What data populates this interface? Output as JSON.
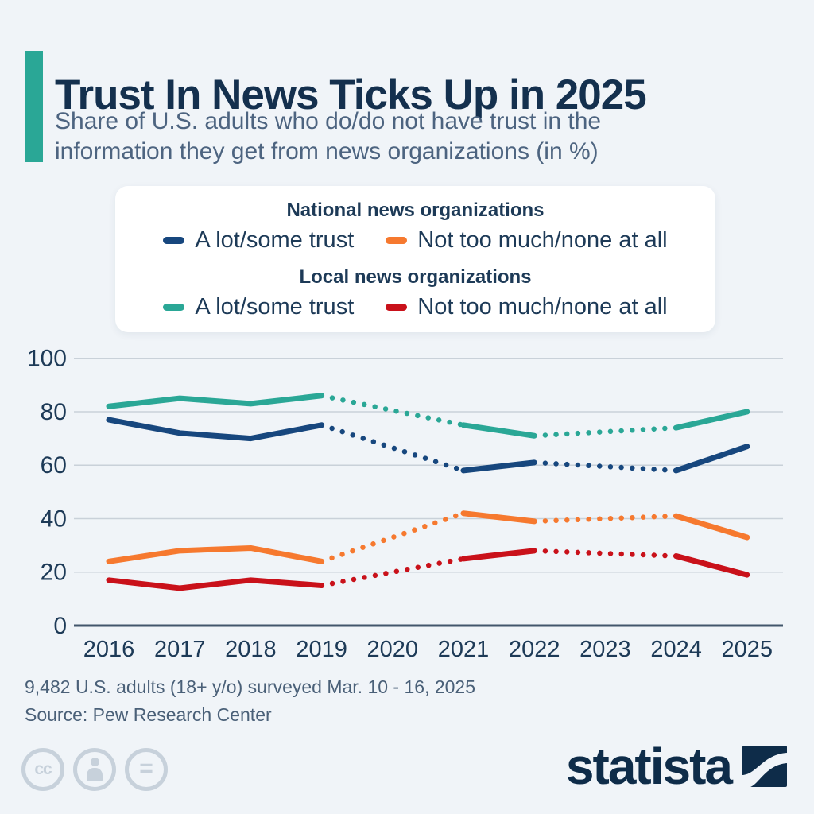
{
  "header": {
    "title": "Trust In News Ticks Up in 2025",
    "subtitle": "Share of U.S. adults who do/do not have trust in the\ninformation they get from news organizations (in %)",
    "accent_color": "#2aa796"
  },
  "legend": {
    "groups": [
      {
        "heading": "National news organizations",
        "items": [
          {
            "label": "A lot/some trust",
            "color": "#17477e"
          },
          {
            "label": "Not too much/none at all",
            "color": "#f6792f"
          }
        ]
      },
      {
        "heading": "Local news organizations",
        "items": [
          {
            "label": "A lot/some trust",
            "color": "#2aa796"
          },
          {
            "label": "Not too much/none at all",
            "color": "#c9111a"
          }
        ]
      }
    ]
  },
  "chart_data": {
    "type": "line",
    "x": [
      2016,
      2017,
      2018,
      2019,
      2020,
      2021,
      2022,
      2023,
      2024,
      2025
    ],
    "ylim": [
      0,
      100
    ],
    "yticks": [
      0,
      20,
      40,
      60,
      80,
      100
    ],
    "grid": true,
    "note": "null values = years without a survey (2020, 2023); those gaps are drawn as dotted interpolation",
    "dotted_segments": [
      [
        2019,
        2021
      ],
      [
        2022,
        2024
      ]
    ],
    "series": [
      {
        "name": "National news organizations — A lot/some trust",
        "color": "#17477e",
        "values": [
          77,
          72,
          70,
          75,
          null,
          58,
          61,
          null,
          58,
          67
        ]
      },
      {
        "name": "National news organizations — Not too much/none at all",
        "color": "#f6792f",
        "values": [
          24,
          28,
          29,
          24,
          null,
          42,
          39,
          null,
          41,
          33
        ]
      },
      {
        "name": "Local news organizations — A lot/some trust",
        "color": "#2aa796",
        "values": [
          82,
          85,
          83,
          86,
          null,
          75,
          71,
          null,
          74,
          80
        ]
      },
      {
        "name": "Local news organizations — Not too much/none at all",
        "color": "#c9111a",
        "values": [
          17,
          14,
          17,
          15,
          null,
          25,
          28,
          null,
          26,
          19
        ]
      }
    ],
    "colors": {
      "grid": "#c9d1d9",
      "axis": "#42566b",
      "tick_label": "#1d3a57"
    }
  },
  "footer": {
    "note": "9,482 U.S. adults (18+ y/o) surveyed Mar. 10 - 16, 2025",
    "source": "Source: Pew Research Center"
  },
  "branding": {
    "logo_text": "statista",
    "license_icons": [
      "cc",
      "by-person",
      "nd-equals"
    ]
  }
}
